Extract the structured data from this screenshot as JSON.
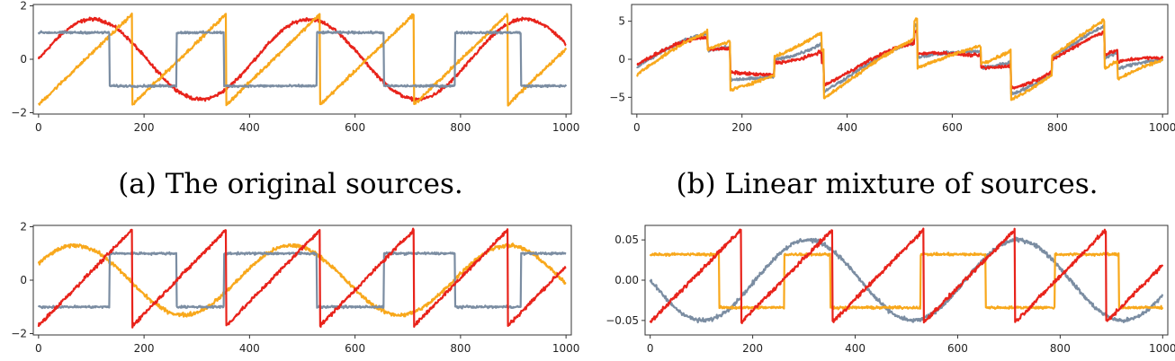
{
  "captions": {
    "a": "(a) The original sources.",
    "b": "(b) Linear mixture of sources."
  },
  "colors": {
    "red": "#e8231b",
    "orange": "#f8a81c",
    "gray": "#7b8da2"
  },
  "chart_data": [
    {
      "id": "a",
      "type": "line",
      "xlim": [
        -10,
        1010
      ],
      "ylim": [
        -2.05,
        2.05
      ],
      "xticks": [
        0,
        200,
        400,
        600,
        800,
        1000
      ],
      "xticklabels": [
        "0",
        "200",
        "400",
        "600",
        "800",
        "1000"
      ],
      "yticks": [
        2,
        0,
        -2
      ],
      "yticklabels": [
        "2",
        "0",
        "−2"
      ],
      "series": [
        {
          "color": "red",
          "shape": "sine",
          "params": {
            "amp": 1.5,
            "period": 410,
            "phase": 0
          },
          "noise": 0.06
        },
        {
          "color": "orange",
          "shape": "sawtooth",
          "params": {
            "low": -1.7,
            "high": 1.7,
            "period": 178,
            "phase": 0
          },
          "noise": 0.06
        },
        {
          "color": "gray",
          "shape": "square",
          "params": {
            "levels": [
              1.0,
              -1.0
            ],
            "switches": [
              0,
              135,
              262,
              352,
              528,
              655,
              790,
              915,
              1000
            ],
            "start": 0
          },
          "noise": 0.04
        }
      ]
    },
    {
      "id": "b",
      "type": "line",
      "xlim": [
        -10,
        1010
      ],
      "ylim": [
        -7.2,
        7.2
      ],
      "xticks": [
        0,
        200,
        400,
        600,
        800,
        1000
      ],
      "xticklabels": [
        "0",
        "200",
        "400",
        "600",
        "800",
        "1000"
      ],
      "yticks": [
        5,
        0,
        -5
      ],
      "yticklabels": [
        "5",
        "0",
        "−5"
      ],
      "series": [
        {
          "color": "gray",
          "shape": "mix",
          "params": {
            "a": 0.9,
            "b": 1.25,
            "c": 1.1
          },
          "noise": 0.2
        },
        {
          "color": "red",
          "shape": "mix",
          "params": {
            "a": 1.0,
            "b": 0.9,
            "c": 0.8
          },
          "noise": 0.2
        },
        {
          "color": "orange",
          "shape": "mix",
          "params": {
            "a": 0.6,
            "b": 1.9,
            "c": 1.2
          },
          "noise": 0.2
        }
      ]
    },
    {
      "id": "c",
      "type": "line",
      "xlim": [
        -10,
        1010
      ],
      "ylim": [
        -2.05,
        2.05
      ],
      "xticks": [
        0,
        200,
        400,
        600,
        800,
        1000
      ],
      "xticklabels": [
        "0",
        "200",
        "400",
        "600",
        "800",
        "1000"
      ],
      "yticks": [
        2,
        0,
        -2
      ],
      "yticklabels": [
        "2",
        "0",
        "−2"
      ],
      "series": [
        {
          "color": "orange",
          "shape": "sine",
          "params": {
            "amp": 1.3,
            "period": 410,
            "phase": 0.5
          },
          "noise": 0.07
        },
        {
          "color": "gray",
          "shape": "square",
          "params": {
            "levels": [
              -1.0,
              1.0
            ],
            "switches": [
              0,
              135,
              262,
              352,
              528,
              655,
              790,
              915,
              1000
            ],
            "start": 0
          },
          "noise": 0.04
        },
        {
          "color": "red",
          "shape": "sawtooth",
          "params": {
            "low": -1.7,
            "high": 1.9,
            "period": 178,
            "phase": 0
          },
          "noise": 0.07
        }
      ]
    },
    {
      "id": "d",
      "type": "line",
      "xlim": [
        -10,
        1010
      ],
      "ylim": [
        -0.068,
        0.068
      ],
      "xticks": [
        0,
        200,
        400,
        600,
        800,
        1000
      ],
      "xticklabels": [
        "0",
        "200",
        "400",
        "600",
        "800",
        "1000"
      ],
      "yticks": [
        0.05,
        0,
        -0.05
      ],
      "yticklabels": [
        "0.05",
        "0.00",
        "−0.05"
      ],
      "series": [
        {
          "color": "gray",
          "shape": "sine",
          "params": {
            "amp": 0.05,
            "period": 410,
            "phase": 3.14159
          },
          "noise": 0.0025
        },
        {
          "color": "orange",
          "shape": "square",
          "params": {
            "levels": [
              0.032,
              -0.034
            ],
            "switches": [
              0,
              135,
              262,
              352,
              528,
              655,
              790,
              915,
              1000
            ],
            "start": 0
          },
          "noise": 0.0015
        },
        {
          "color": "red",
          "shape": "sawtooth",
          "params": {
            "low": -0.052,
            "high": 0.063,
            "period": 178,
            "phase": 0
          },
          "noise": 0.0025
        }
      ]
    }
  ]
}
